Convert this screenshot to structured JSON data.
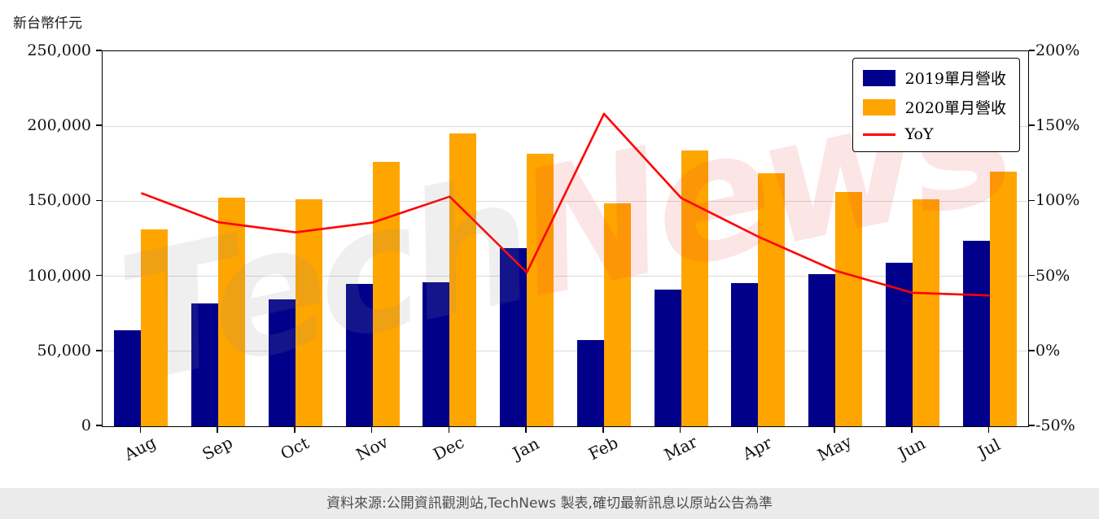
{
  "page": {
    "unit_label": "新台幣仟元",
    "footer": "資料來源:公開資訊觀測站,TechNews 製表,確切最新訊息以原站公告為準",
    "watermark": {
      "full": "TechNews",
      "part1": "Tech",
      "part2": "News"
    },
    "background": "#ffffff",
    "footer_background": "#ebebeb"
  },
  "chart_data": {
    "type": "bar",
    "subtype": "grouped-bars-with-yoy-line",
    "title": "",
    "categories": [
      "Aug",
      "Sep",
      "Oct",
      "Nov",
      "Dec",
      "Jan",
      "Feb",
      "Mar",
      "Apr",
      "May",
      "Jun",
      "Jul"
    ],
    "series": [
      {
        "id": "2019",
        "name": "2019單月營收",
        "type": "bar",
        "axis": "left",
        "color": "#00008B",
        "values": [
          64000,
          82000,
          84500,
          95000,
          96000,
          119000,
          57500,
          91000,
          95500,
          101500,
          109000,
          123500
        ]
      },
      {
        "id": "2020",
        "name": "2020單月營收",
        "type": "bar",
        "axis": "left",
        "color": "#FFA500",
        "values": [
          131500,
          152500,
          151500,
          176500,
          195000,
          181500,
          148500,
          184000,
          168500,
          156000,
          151500,
          169500
        ]
      },
      {
        "id": "yoy",
        "name": "YoY",
        "type": "line",
        "axis": "right",
        "color": "#FF0000",
        "values": [
          105.5,
          86.0,
          79.3,
          85.8,
          103.1,
          52.5,
          158.3,
          102.2,
          76.4,
          53.7,
          39.0,
          37.2
        ]
      }
    ],
    "left_axis": {
      "label": "新台幣仟元",
      "min": 0,
      "max": 250000,
      "step": 50000,
      "tick_labels": [
        "0",
        "50,000",
        "100,000",
        "150,000",
        "200,000",
        "250,000"
      ]
    },
    "right_axis": {
      "min": -50,
      "max": 200,
      "step": 50,
      "tick_labels": [
        "-50%",
        "0%",
        "50%",
        "100%",
        "150%",
        "200%"
      ]
    },
    "grid": true,
    "grid_color": "#d9d9d9",
    "legend_position": "top-right"
  }
}
